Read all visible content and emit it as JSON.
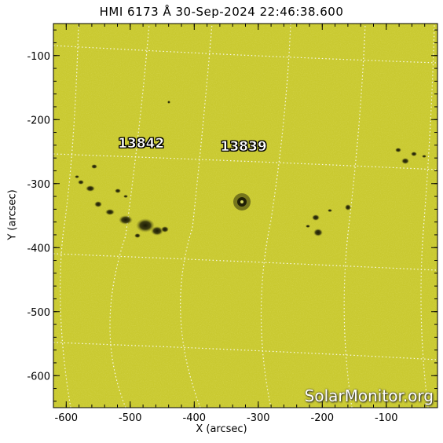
{
  "title": "HMI 6173 Å 30-Sep-2024 22:46:38.600",
  "x_axis": {
    "label": "X (arcsec)",
    "range": [
      -620,
      -20
    ],
    "ticks": [
      -600,
      -500,
      -400,
      -300,
      -200,
      -100
    ]
  },
  "y_axis": {
    "label": "Y (arcsec)",
    "range": [
      -650,
      -50
    ],
    "ticks": [
      -100,
      -200,
      -300,
      -400,
      -500,
      -600
    ]
  },
  "active_regions": [
    {
      "id": "13842",
      "x": -480,
      "y": -240
    },
    {
      "id": "13839",
      "x": -320,
      "y": -245
    }
  ],
  "watermark": "SolarMonitor.org",
  "colors": {
    "background": "#c8c830",
    "grid": "#ffffff",
    "frame": "#000000"
  },
  "grid": true
}
